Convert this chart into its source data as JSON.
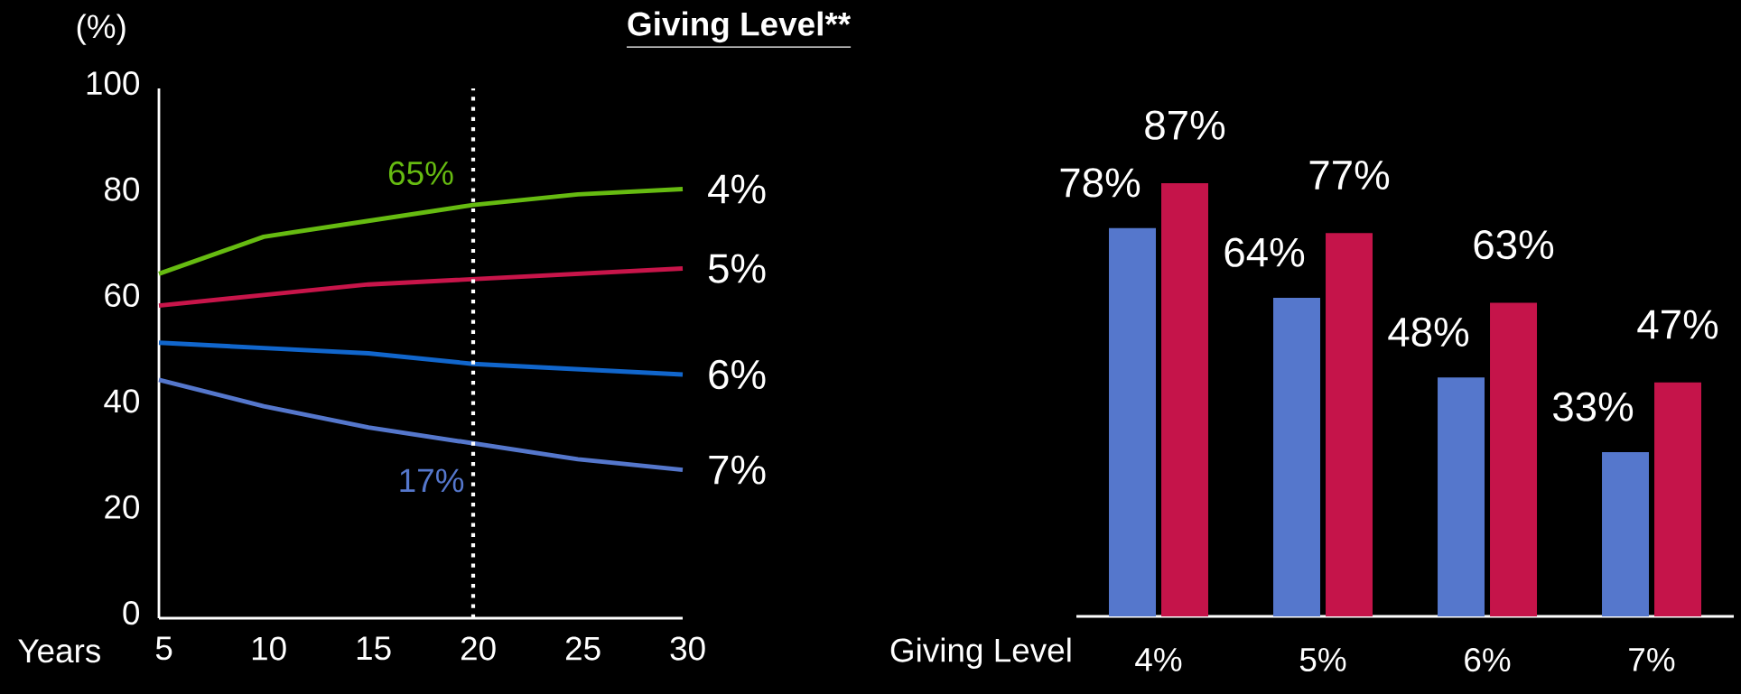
{
  "chart_data": [
    {
      "type": "line",
      "title": "Giving Level**",
      "xlabel": "Years",
      "ylabel": "(%)",
      "x": [
        5,
        10,
        15,
        20,
        25,
        30
      ],
      "series": [
        {
          "name": "4%",
          "color": "#66bb11",
          "values": [
            65,
            72,
            75,
            78,
            80,
            81
          ]
        },
        {
          "name": "5%",
          "color": "#c8154a",
          "values": [
            59,
            61,
            63,
            64,
            65,
            66
          ]
        },
        {
          "name": "6%",
          "color": "#1166cc",
          "values": [
            52,
            51,
            50,
            48,
            47,
            46
          ]
        },
        {
          "name": "7%",
          "color": "#5577cc",
          "values": [
            45,
            40,
            36,
            33,
            30,
            28
          ]
        }
      ],
      "xlim": [
        5,
        30
      ],
      "xticks": [
        5,
        10,
        15,
        20,
        25,
        30
      ],
      "ylim": [
        0,
        100
      ],
      "yticks": [
        0,
        20,
        40,
        60,
        80,
        100
      ],
      "ref_lines": [
        {
          "axis": "x",
          "value": 20,
          "color": "#ffffff",
          "line_style": "dotted"
        }
      ],
      "annotations": [
        "65%",
        "17%"
      ]
    },
    {
      "type": "bar",
      "xlabel": "Giving Level",
      "categories": [
        "4%",
        "5%",
        "6%",
        "7%"
      ],
      "series": [
        {
          "color": "#5577cc",
          "values": [
            78,
            64,
            48,
            33
          ],
          "value_labels": [
            "78%",
            "64%",
            "48%",
            "33%"
          ]
        },
        {
          "color": "#c5144a",
          "values": [
            87,
            77,
            63,
            47
          ],
          "value_labels": [
            "87%",
            "77%",
            "63%",
            "47%"
          ]
        }
      ]
    }
  ]
}
